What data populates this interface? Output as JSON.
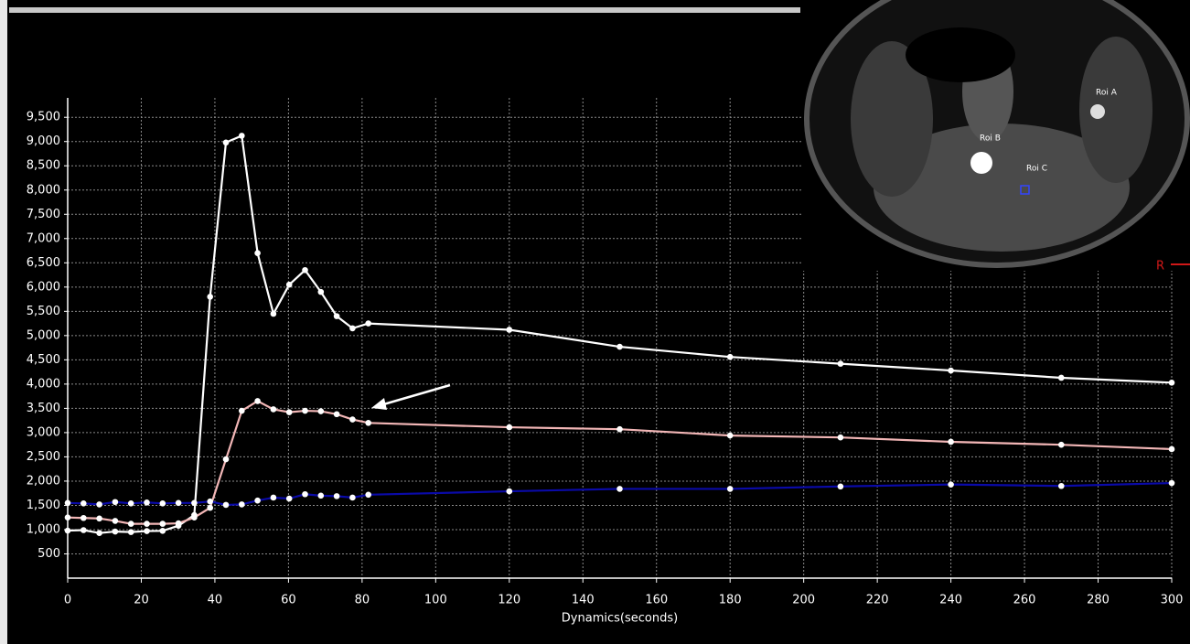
{
  "chart_data": {
    "type": "line",
    "xlabel": "Dynamics(seconds)",
    "x": [
      0,
      4.3,
      8.6,
      12.9,
      17.2,
      21.5,
      25.8,
      30.1,
      34.4,
      38.7,
      43,
      47.3,
      51.6,
      55.9,
      60.2,
      64.5,
      68.8,
      73.1,
      77.4,
      81.7,
      120,
      150,
      180,
      210,
      240,
      270,
      300
    ],
    "series": [
      {
        "color": "#ffffff",
        "values": [
          980,
          990,
          930,
          960,
          950,
          970,
          975,
          1080,
          1300,
          5800,
          8980,
          9120,
          6700,
          5450,
          6050,
          6350,
          5900,
          5400,
          5150,
          5250,
          5120,
          4770,
          4560,
          4420,
          4280,
          4130,
          4030
        ]
      },
      {
        "color": "#f2b6b6",
        "values": [
          1250,
          1240,
          1230,
          1180,
          1120,
          1120,
          1120,
          1130,
          1250,
          1450,
          2450,
          3450,
          3650,
          3480,
          3420,
          3450,
          3440,
          3380,
          3270,
          3200,
          3110,
          3070,
          2940,
          2900,
          2810,
          2750,
          2660
        ]
      },
      {
        "color": "#0a0aa8",
        "values": [
          1550,
          1540,
          1520,
          1570,
          1540,
          1560,
          1540,
          1550,
          1550,
          1580,
          1510,
          1520,
          1600,
          1660,
          1640,
          1730,
          1700,
          1690,
          1660,
          1720,
          1790,
          1840,
          1840,
          1890,
          1930,
          1900,
          1960
        ]
      }
    ],
    "xlim": [
      0,
      300
    ],
    "xticks": [
      0,
      20,
      40,
      60,
      80,
      100,
      120,
      140,
      160,
      180,
      200,
      220,
      240,
      260,
      280,
      300
    ],
    "ylim": [
      0,
      9900
    ],
    "yticks": [
      500,
      {
        "value": 1000,
        "label": "1,000"
      },
      {
        "value": 1500,
        "label": "1,500"
      },
      {
        "value": 2000,
        "label": "2,000"
      },
      {
        "value": 2500,
        "label": "2,500"
      },
      {
        "value": 3000,
        "label": "3,000"
      },
      {
        "value": 3500,
        "label": "3,500"
      },
      {
        "value": 4000,
        "label": "4,000"
      },
      {
        "value": 4500,
        "label": "4,500"
      },
      {
        "value": 5000,
        "label": "5,000"
      },
      {
        "value": 5500,
        "label": "5,500"
      },
      {
        "value": 6000,
        "label": "6,000"
      },
      {
        "value": 6500,
        "label": "6,500"
      },
      {
        "value": 7000,
        "label": "7,000"
      },
      {
        "value": 7500,
        "label": "7,500"
      },
      {
        "value": 8000,
        "label": "8,000"
      },
      {
        "value": 8500,
        "label": "8,500"
      },
      {
        "value": 9000,
        "label": "9,000"
      },
      {
        "value": 9500,
        "label": "9,500"
      }
    ],
    "grid": true
  },
  "image": {
    "labels": [
      "Roi A",
      "Roi B",
      "Roi C",
      "R"
    ]
  }
}
